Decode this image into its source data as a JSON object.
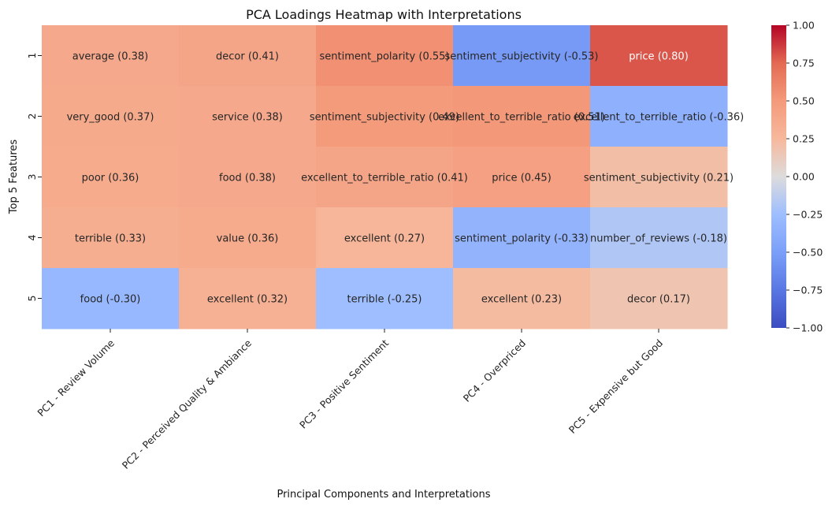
{
  "chart_data": {
    "type": "heatmap",
    "title": "PCA Loadings Heatmap with Interpretations",
    "xlabel": "Principal Components and Interpretations",
    "ylabel": "Top 5 Features",
    "columns": [
      "PC1 - Review Volume",
      "PC2 - Perceived Quality & Ambiance",
      "PC3 - Positive Sentiment",
      "PC4 - Overpriced",
      "PC5 - Expensive but Good"
    ],
    "rows": [
      "1",
      "2",
      "3",
      "4",
      "5"
    ],
    "values": [
      [
        0.38,
        0.41,
        0.55,
        -0.53,
        0.8
      ],
      [
        0.37,
        0.38,
        0.49,
        0.51,
        -0.36
      ],
      [
        0.36,
        0.38,
        0.41,
        0.45,
        0.21
      ],
      [
        0.33,
        0.36,
        0.27,
        -0.33,
        -0.18
      ],
      [
        -0.3,
        0.32,
        -0.25,
        0.23,
        0.17
      ]
    ],
    "annotations": [
      [
        "average (0.38)",
        "decor (0.41)",
        "sentiment_polarity (0.55)",
        "sentiment_subjectivity (-0.53)",
        "price (0.80)"
      ],
      [
        "very_good (0.37)",
        "service (0.38)",
        "sentiment_subjectivity (0.49)",
        "excellent_to_terrible_ratio (0.51)",
        "excellent_to_terrible_ratio (-0.36)"
      ],
      [
        "poor (0.36)",
        "food (0.38)",
        "excellent_to_terrible_ratio (0.41)",
        "price (0.45)",
        "sentiment_subjectivity (0.21)"
      ],
      [
        "terrible (0.33)",
        "value (0.36)",
        "excellent (0.27)",
        "sentiment_polarity (-0.33)",
        "number_of_reviews (-0.18)"
      ],
      [
        "food (-0.30)",
        "excellent (0.32)",
        "terrible (-0.25)",
        "excellent (0.23)",
        "decor (0.17)"
      ]
    ],
    "colorbar": {
      "colormap": "coolwarm",
      "range": [
        -1,
        1
      ],
      "ticks": [
        "1.00",
        "0.75",
        "0.50",
        "0.25",
        "0.00",
        "−0.25",
        "−0.50",
        "−0.75",
        "−1.00"
      ]
    }
  }
}
